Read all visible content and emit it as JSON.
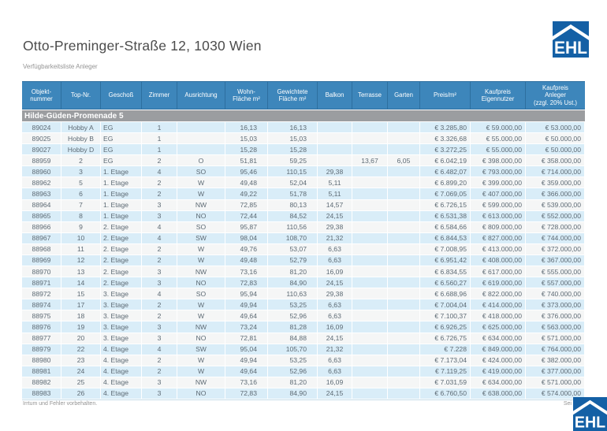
{
  "page": {
    "title": "Otto-Preminger-Straße 12, 1030 Wien",
    "subtitle": "Verfügbarkeitsliste Anleger",
    "footer_left": "Irrtum und Fehler vorbehalten.",
    "footer_right_visible": "Sei",
    "logo_text": "EHL"
  },
  "colors": {
    "header_bg": "#3d86bb",
    "header_border": "#2d6f9f",
    "section_bg": "#9b9da0",
    "row_blue": "#d9edf8",
    "row_gray": "#f5f6f6",
    "logo_blue": "#1460a5",
    "cell_text": "#5d6a74",
    "title_color": "#4c4c4c",
    "muted": "#949494"
  },
  "table": {
    "section_header": "Hilde-Güden-Promenade 5",
    "columns": [
      {
        "key": "objektnummer",
        "label": "Objekt-\nnummer"
      },
      {
        "key": "top_nr",
        "label": "Top-Nr."
      },
      {
        "key": "geschoss",
        "label": "Geschoß"
      },
      {
        "key": "zimmer",
        "label": "Zimmer"
      },
      {
        "key": "ausrichtung",
        "label": "Ausrichtung"
      },
      {
        "key": "wohnflaeche",
        "label": "Wohn-\nFläche m²"
      },
      {
        "key": "gewichtete_flaeche",
        "label": "Gewichtete\nFläche m²"
      },
      {
        "key": "balkon",
        "label": "Balkon"
      },
      {
        "key": "terrasse",
        "label": "Terrasse"
      },
      {
        "key": "garten",
        "label": "Garten"
      },
      {
        "key": "preis_m2",
        "label": "Preis/m²"
      },
      {
        "key": "kaufpreis_eigennutzer",
        "label": "Kaufpreis\nEigennutzer"
      },
      {
        "key": "kaufpreis_anleger",
        "label": "Kaufpreis\nAnleger\n(zzgl. 20% Ust.)"
      }
    ],
    "rows": [
      [
        "89024",
        "Hobby A",
        "EG",
        "1",
        "",
        "16,13",
        "16,13",
        "",
        "",
        "",
        "€ 3.285,80",
        "€ 59.000,00",
        "€ 53.000,00"
      ],
      [
        "89025",
        "Hobby B",
        "EG",
        "1",
        "",
        "15,03",
        "15,03",
        "",
        "",
        "",
        "€ 3.326,68",
        "€ 55.000,00",
        "€ 50.000,00"
      ],
      [
        "89027",
        "Hobby D",
        "EG",
        "1",
        "",
        "15,28",
        "15,28",
        "",
        "",
        "",
        "€ 3.272,25",
        "€ 55.000,00",
        "€ 50.000,00"
      ],
      [
        "88959",
        "2",
        "EG",
        "2",
        "O",
        "51,81",
        "59,25",
        "",
        "13,67",
        "6,05",
        "€ 6.042,19",
        "€ 398.000,00",
        "€ 358.000,00"
      ],
      [
        "88960",
        "3",
        "1. Etage",
        "4",
        "SO",
        "95,46",
        "110,15",
        "29,38",
        "",
        "",
        "€ 6.482,07",
        "€ 793.000,00",
        "€ 714.000,00"
      ],
      [
        "88962",
        "5",
        "1. Etage",
        "2",
        "W",
        "49,48",
        "52,04",
        "5,11",
        "",
        "",
        "€ 6.899,20",
        "€ 399.000,00",
        "€ 359.000,00"
      ],
      [
        "88963",
        "6",
        "1. Etage",
        "2",
        "W",
        "49,22",
        "51,78",
        "5,11",
        "",
        "",
        "€ 7.069,05",
        "€ 407.000,00",
        "€ 366.000,00"
      ],
      [
        "88964",
        "7",
        "1. Etage",
        "3",
        "NW",
        "72,85",
        "80,13",
        "14,57",
        "",
        "",
        "€ 6.726,15",
        "€ 599.000,00",
        "€ 539.000,00"
      ],
      [
        "88965",
        "8",
        "1. Etage",
        "3",
        "NO",
        "72,44",
        "84,52",
        "24,15",
        "",
        "",
        "€ 6.531,38",
        "€ 613.000,00",
        "€ 552.000,00"
      ],
      [
        "88966",
        "9",
        "2. Etage",
        "4",
        "SO",
        "95,87",
        "110,56",
        "29,38",
        "",
        "",
        "€ 6.584,66",
        "€ 809.000,00",
        "€ 728.000,00"
      ],
      [
        "88967",
        "10",
        "2. Etage",
        "4",
        "SW",
        "98,04",
        "108,70",
        "21,32",
        "",
        "",
        "€ 6.844,53",
        "€ 827.000,00",
        "€ 744.000,00"
      ],
      [
        "88968",
        "11",
        "2. Etage",
        "2",
        "W",
        "49,76",
        "53,07",
        "6,63",
        "",
        "",
        "€ 7.008,95",
        "€ 413.000,00",
        "€ 372.000,00"
      ],
      [
        "88969",
        "12",
        "2. Etage",
        "2",
        "W",
        "49,48",
        "52,79",
        "6,63",
        "",
        "",
        "€ 6.951,42",
        "€ 408.000,00",
        "€ 367.000,00"
      ],
      [
        "88970",
        "13",
        "2. Etage",
        "3",
        "NW",
        "73,16",
        "81,20",
        "16,09",
        "",
        "",
        "€ 6.834,55",
        "€ 617.000,00",
        "€ 555.000,00"
      ],
      [
        "88971",
        "14",
        "2. Etage",
        "3",
        "NO",
        "72,83",
        "84,90",
        "24,15",
        "",
        "",
        "€ 6.560,27",
        "€ 619.000,00",
        "€ 557.000,00"
      ],
      [
        "88972",
        "15",
        "3. Etage",
        "4",
        "SO",
        "95,94",
        "110,63",
        "29,38",
        "",
        "",
        "€ 6.688,96",
        "€ 822.000,00",
        "€ 740.000,00"
      ],
      [
        "88974",
        "17",
        "3. Etage",
        "2",
        "W",
        "49,94",
        "53,25",
        "6,63",
        "",
        "",
        "€ 7.004,04",
        "€ 414.000,00",
        "€ 373.000,00"
      ],
      [
        "88975",
        "18",
        "3. Etage",
        "2",
        "W",
        "49,64",
        "52,96",
        "6,63",
        "",
        "",
        "€ 7.100,37",
        "€ 418.000,00",
        "€ 376.000,00"
      ],
      [
        "88976",
        "19",
        "3. Etage",
        "3",
        "NW",
        "73,24",
        "81,28",
        "16,09",
        "",
        "",
        "€ 6.926,25",
        "€ 625.000,00",
        "€ 563.000,00"
      ],
      [
        "88977",
        "20",
        "3. Etage",
        "3",
        "NO",
        "72,81",
        "84,88",
        "24,15",
        "",
        "",
        "€ 6.726,75",
        "€ 634.000,00",
        "€ 571.000,00"
      ],
      [
        "88979",
        "22",
        "4. Etage",
        "4",
        "SW",
        "95,04",
        "105,70",
        "21,32",
        "",
        "",
        "€ 7.228",
        "€ 849.000,00",
        "€ 764.000,00"
      ],
      [
        "88980",
        "23",
        "4. Etage",
        "2",
        "W",
        "49,94",
        "53,25",
        "6,63",
        "",
        "",
        "€ 7.173,04",
        "€ 424.000,00",
        "€ 382.000,00"
      ],
      [
        "88981",
        "24",
        "4. Etage",
        "2",
        "W",
        "49,64",
        "52,96",
        "6,63",
        "",
        "",
        "€ 7.119,25",
        "€ 419.000,00",
        "€ 377.000,00"
      ],
      [
        "88982",
        "25",
        "4. Etage",
        "3",
        "NW",
        "73,16",
        "81,20",
        "16,09",
        "",
        "",
        "€ 7.031,59",
        "€ 634.000,00",
        "€ 571.000,00"
      ],
      [
        "88983",
        "26",
        "4. Etage",
        "3",
        "NO",
        "72,83",
        "84,90",
        "24,15",
        "",
        "",
        "€ 6.760,50",
        "€ 638.000,00",
        "€ 574.000,00"
      ]
    ]
  }
}
